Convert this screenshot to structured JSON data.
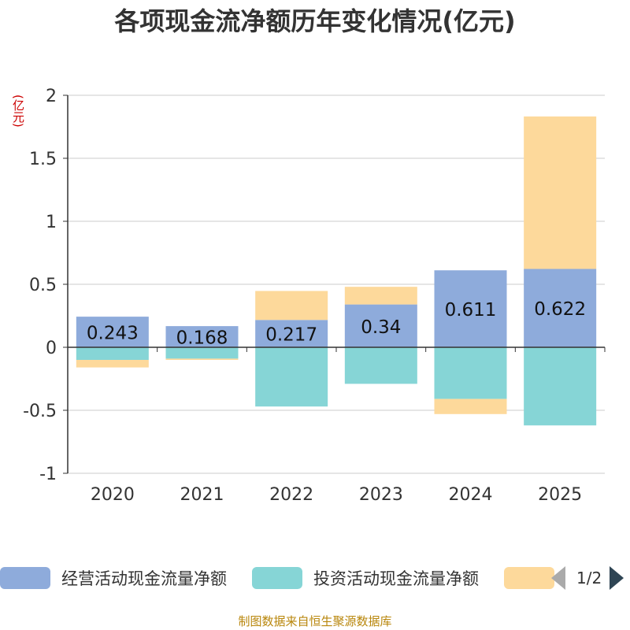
{
  "title": "各项现金流净额历年变化情况(亿元)",
  "unit_label": "(亿元)",
  "chart_data": {
    "type": "bar",
    "stacked": true,
    "categories": [
      "2020",
      "2021",
      "2022",
      "2023",
      "2024",
      "2025"
    ],
    "series": [
      {
        "name": "经营活动现金流量净额",
        "color": "#8eabdb",
        "values": [
          0.243,
          0.168,
          0.217,
          0.34,
          0.611,
          0.622
        ],
        "labels": [
          "0.243",
          "0.168",
          "0.217",
          "0.34",
          "0.611",
          "0.622"
        ]
      },
      {
        "name": "投资活动现金流量净额",
        "color": "#86d5d6",
        "values": [
          -0.1,
          -0.09,
          -0.47,
          -0.29,
          -0.41,
          -0.62
        ]
      },
      {
        "name": "",
        "color": "#fdd99b",
        "values": [
          -0.06,
          -0.01,
          0.23,
          0.14,
          -0.12,
          1.21
        ]
      }
    ],
    "ylim": [
      -1,
      2
    ],
    "yticks": [
      -1,
      -0.5,
      0,
      0.5,
      1,
      1.5,
      2
    ],
    "ytick_labels": [
      "-1",
      "-0.5",
      "0",
      "0.5",
      "1",
      "1.5",
      "2"
    ],
    "grid": true,
    "legend_position": "bottom"
  },
  "legend": {
    "items": [
      {
        "label": "经营活动现金流量净额",
        "color": "#8eabdb"
      },
      {
        "label": "投资活动现金流量净额",
        "color": "#86d5d6"
      },
      {
        "label": "",
        "color": "#fdd99b"
      }
    ],
    "page_text": "1/2"
  },
  "source": "制图数据来自恒生聚源数据库"
}
